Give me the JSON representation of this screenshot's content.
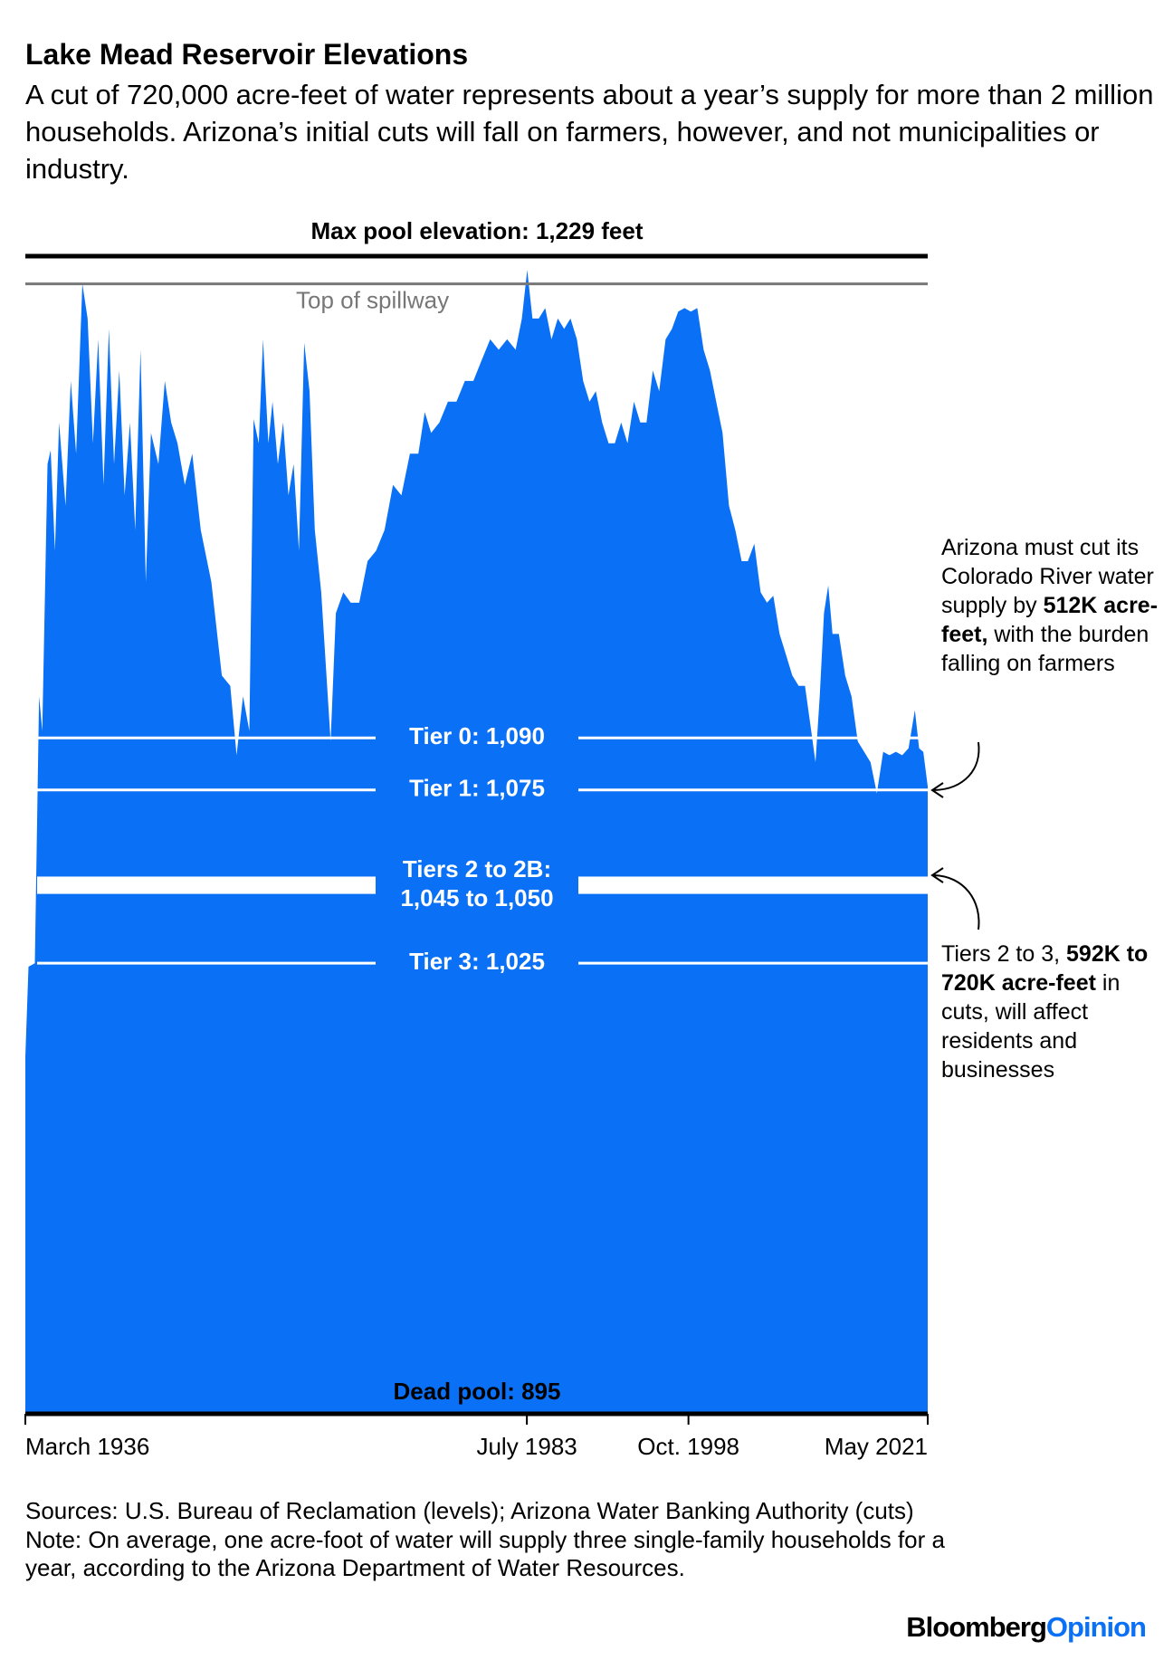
{
  "chart_data": {
    "type": "area",
    "title": "Lake Mead Reservoir Elevations",
    "subtitle": "A cut of 720,000 acre-feet of water represents about a year’s supply for more than 2 million households. Arizona’s initial cuts will fall on farmers, however, and not municipalities or industry.",
    "color": "#0a70f5",
    "x": [
      1936.17,
      1936.47,
      1937.07,
      1937.47,
      1937.77,
      1938.26,
      1938.56,
      1938.96,
      1939.36,
      1939.96,
      1940.46,
      1940.96,
      1941.55,
      1942.05,
      1942.55,
      1943.05,
      1943.55,
      1944.05,
      1944.54,
      1945.04,
      1945.54,
      1946.04,
      1946.54,
      1947.04,
      1947.54,
      1948.03,
      1948.73,
      1949.33,
      1949.93,
      1950.53,
      1951.22,
      1951.92,
      1952.72,
      1953.72,
      1954.71,
      1955.51,
      1956.11,
      1956.71,
      1957.31,
      1957.71,
      1958.2,
      1958.6,
      1959.1,
      1959.5,
      1960.0,
      1960.5,
      1961.0,
      1961.49,
      1961.99,
      1962.49,
      1962.99,
      1963.49,
      1964.09,
      1964.59,
      1964.98,
      1965.48,
      1966.18,
      1966.88,
      1967.68,
      1968.47,
      1969.27,
      1970.07,
      1970.87,
      1971.66,
      1972.46,
      1973.26,
      1973.86,
      1974.46,
      1975.25,
      1976.05,
      1976.85,
      1977.65,
      1978.45,
      1979.24,
      1980.04,
      1980.84,
      1981.64,
      1982.44,
      1983.03,
      1983.53,
      1984.03,
      1984.63,
      1985.23,
      1985.82,
      1986.42,
      1987.02,
      1987.62,
      1988.22,
      1988.81,
      1989.41,
      1990.01,
      1990.61,
      1991.21,
      1991.8,
      1992.4,
      1993.0,
      1993.6,
      1994.2,
      1994.79,
      1995.39,
      1995.99,
      1996.59,
      1997.19,
      1997.78,
      1998.38,
      1998.98,
      1999.58,
      2000.18,
      2000.78,
      2001.37,
      2001.97,
      2002.57,
      2003.17,
      2003.77,
      2004.36,
      2004.96,
      2005.56,
      2006.16,
      2006.76,
      2007.35,
      2007.95,
      2008.55,
      2009.15,
      2009.75,
      2010.34,
      2010.74,
      2011.14,
      2011.54,
      2011.94,
      2012.34,
      2012.94,
      2013.54,
      2014.14,
      2014.73,
      2015.33,
      2015.93,
      2016.53,
      2017.13,
      2017.72,
      2018.32,
      2018.92,
      2019.52,
      2020.12,
      2020.52,
      2020.91,
      2021.33
    ],
    "values": [
      998,
      1024,
      1025,
      1102,
      1092,
      1169,
      1173,
      1144,
      1181,
      1157,
      1193,
      1172,
      1221,
      1211,
      1175,
      1205,
      1163,
      1208,
      1169,
      1196,
      1160,
      1181,
      1150,
      1202,
      1135,
      1178,
      1169,
      1193,
      1181,
      1175,
      1163,
      1172,
      1150,
      1135,
      1108,
      1105,
      1085,
      1102,
      1092,
      1182,
      1175,
      1205,
      1175,
      1187,
      1169,
      1181,
      1160,
      1169,
      1144,
      1204,
      1190,
      1150,
      1132,
      1108,
      1089,
      1126,
      1132,
      1129,
      1129,
      1141,
      1144,
      1150,
      1163,
      1160,
      1172,
      1172,
      1184,
      1178,
      1181,
      1187,
      1187,
      1193,
      1193,
      1199,
      1205,
      1202,
      1205,
      1202,
      1211,
      1225,
      1211,
      1211,
      1214,
      1205,
      1211,
      1208,
      1211,
      1205,
      1193,
      1187,
      1190,
      1181,
      1175,
      1175,
      1181,
      1175,
      1187,
      1181,
      1181,
      1196,
      1190,
      1205,
      1208,
      1213,
      1214,
      1213,
      1214,
      1202,
      1196,
      1187,
      1178,
      1157,
      1150,
      1141,
      1141,
      1146,
      1132,
      1129,
      1131,
      1120,
      1114,
      1108,
      1105,
      1105,
      1092,
      1083,
      1102,
      1126,
      1134,
      1120,
      1120,
      1108,
      1102,
      1089,
      1086,
      1083,
      1074,
      1086,
      1085,
      1086,
      1085,
      1087,
      1098,
      1087,
      1086,
      1076
    ],
    "xlim": [
      1936.17,
      2021.33
    ],
    "ylim": [
      895,
      1229
    ],
    "xticks": [
      {
        "value": 1936.17,
        "label": "March 1936"
      },
      {
        "value": 1983.5,
        "label": "July 1983"
      },
      {
        "value": 1998.75,
        "label": "Oct. 1998"
      },
      {
        "value": 2021.33,
        "label": "May 2021"
      }
    ],
    "max_pool": {
      "label": "Max pool elevation: 1,229 feet",
      "value": 1229,
      "color": "#000000"
    },
    "spillway": {
      "label": "Top of spillway",
      "value": 1221,
      "color": "#777777"
    },
    "dead_pool": {
      "label": "Dead pool: 895",
      "value": 895,
      "color": "#000000"
    },
    "tiers": [
      {
        "label": "Tier 0: 1,090",
        "value": 1090
      },
      {
        "label": "Tier 1: 1,075",
        "value": 1075
      },
      {
        "label": "Tier 3: 1,025",
        "value": 1025
      }
    ],
    "tier_band": {
      "label_lines": [
        "Tiers 2 to 2B:",
        "1,045 to 1,050"
      ],
      "range": [
        1045,
        1050
      ]
    },
    "annotations": [
      {
        "parts": [
          "Arizona must cut its Colorado River water supply by ",
          "512K acre-feet,",
          " with the burden falling on farmers"
        ],
        "bold": [
          1
        ]
      },
      {
        "parts": [
          "Tiers 2 to 3, ",
          "592K to 720K acre-feet",
          " in cuts, will affect residents and businesses"
        ],
        "bold": [
          1
        ]
      }
    ],
    "sources": "Sources: U.S. Bureau of Reclamation (levels); Arizona Water Banking Authority (cuts)",
    "note": "Note: On average, one acre-foot of water will supply three single-family households for a year, according to the Arizona Department of Water Resources.",
    "credit": {
      "parts": [
        "Bloomberg",
        "Opinion"
      ],
      "colors": [
        "#000000",
        "#0a70f5"
      ]
    }
  }
}
